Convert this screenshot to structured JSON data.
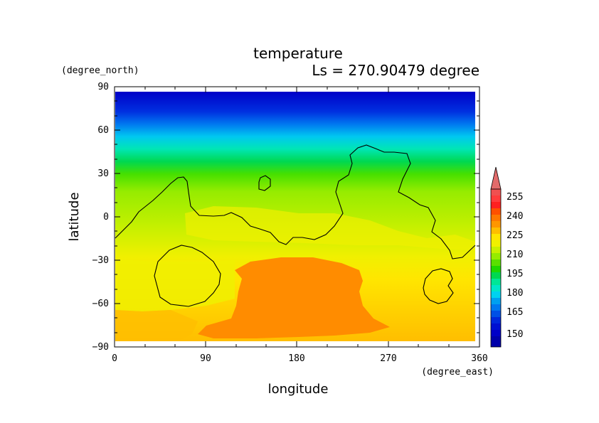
{
  "chart_data": {
    "type": "heatmap",
    "title": "temperature",
    "subtitle": "Ls = 270.90479 degree",
    "xlabel": "longitude",
    "ylabel": "latitude",
    "x_unit": "(degree_east)",
    "y_unit": "(degree_north)",
    "xlim": [
      0,
      360
    ],
    "ylim": [
      -90,
      90
    ],
    "x_ticks": [
      "0",
      "90",
      "180",
      "270",
      "360"
    ],
    "y_ticks": [
      "90",
      "60",
      "30",
      "0",
      "−30",
      "−60",
      "−90"
    ],
    "colorbar": {
      "labels": [
        "255",
        "240",
        "225",
        "210",
        "195",
        "180",
        "165",
        "150"
      ],
      "extend": "max"
    },
    "latitude_band_temperature": [
      {
        "lat": 85,
        "temp": 145
      },
      {
        "lat": 70,
        "temp": 160
      },
      {
        "lat": 60,
        "temp": 175
      },
      {
        "lat": 50,
        "temp": 190
      },
      {
        "lat": 40,
        "temp": 200
      },
      {
        "lat": 30,
        "temp": 207
      },
      {
        "lat": 15,
        "temp": 212
      },
      {
        "lat": 0,
        "temp": 216
      },
      {
        "lat": -15,
        "temp": 220
      },
      {
        "lat": -30,
        "temp": 224
      },
      {
        "lat": -50,
        "temp": 228
      },
      {
        "lat": -70,
        "temp": 230
      },
      {
        "lat": -85,
        "temp": 232
      }
    ],
    "warm_region": {
      "lon_range": [
        75,
        275
      ],
      "lat_range": [
        -85,
        -28
      ],
      "temp": 238
    },
    "contour_regions": [
      "north-america-outline",
      "africa-outline",
      "isle-35N-145E",
      "south-west-loop",
      "south-east-loop"
    ],
    "grid": false
  },
  "colors": {
    "background": "#ffffff",
    "axis": "#000000",
    "contour": "#000000",
    "colorbar_top_arrow": "#e26b6b"
  }
}
